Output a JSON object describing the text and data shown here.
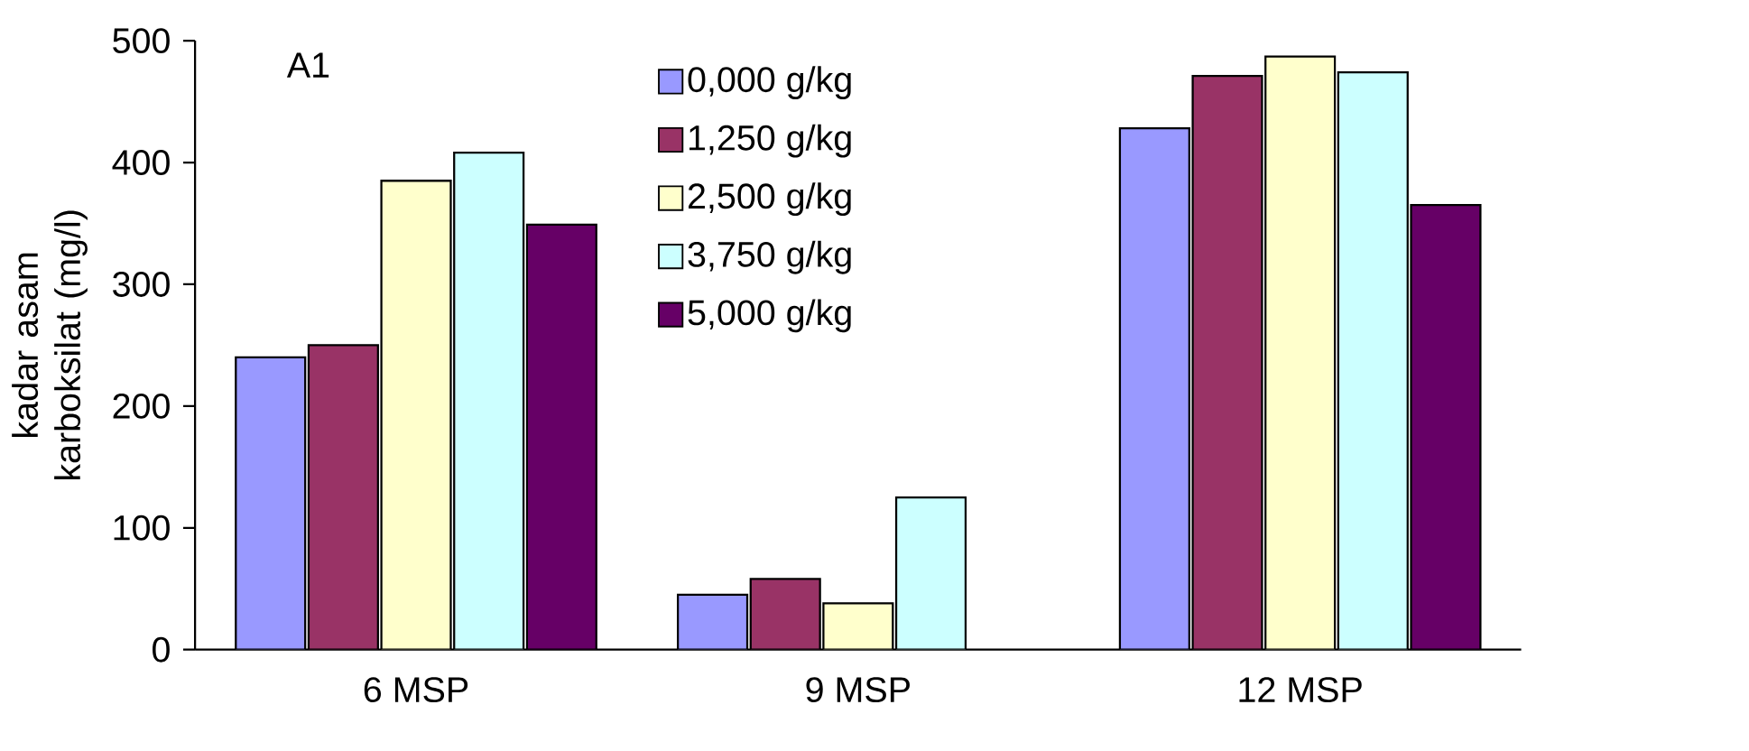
{
  "chart_data": {
    "type": "bar",
    "ylabel": "kadar asam karboksilat (mg/l)",
    "annotations": [
      "A1"
    ],
    "categories": [
      "6 MSP",
      "9 MSP",
      "12 MSP"
    ],
    "series": [
      {
        "name": "0,000 g/kg",
        "color": "#9999ff",
        "values": [
          240,
          45,
          428
        ]
      },
      {
        "name": "1,250 g/kg",
        "color": "#993366",
        "values": [
          250,
          58,
          471
        ]
      },
      {
        "name": "2,500 g/kg",
        "color": "#ffffcc",
        "values": [
          385,
          38,
          487
        ]
      },
      {
        "name": "3,750 g/kg",
        "color": "#ccffff",
        "values": [
          408,
          125,
          474
        ]
      },
      {
        "name": "5,000 g/kg",
        "color": "#660066",
        "values": [
          349,
          null,
          365
        ]
      }
    ],
    "ylim": [
      0,
      500
    ],
    "yticks": [
      0,
      100,
      200,
      300,
      400,
      500
    ],
    "grid": false,
    "legend": "top"
  }
}
